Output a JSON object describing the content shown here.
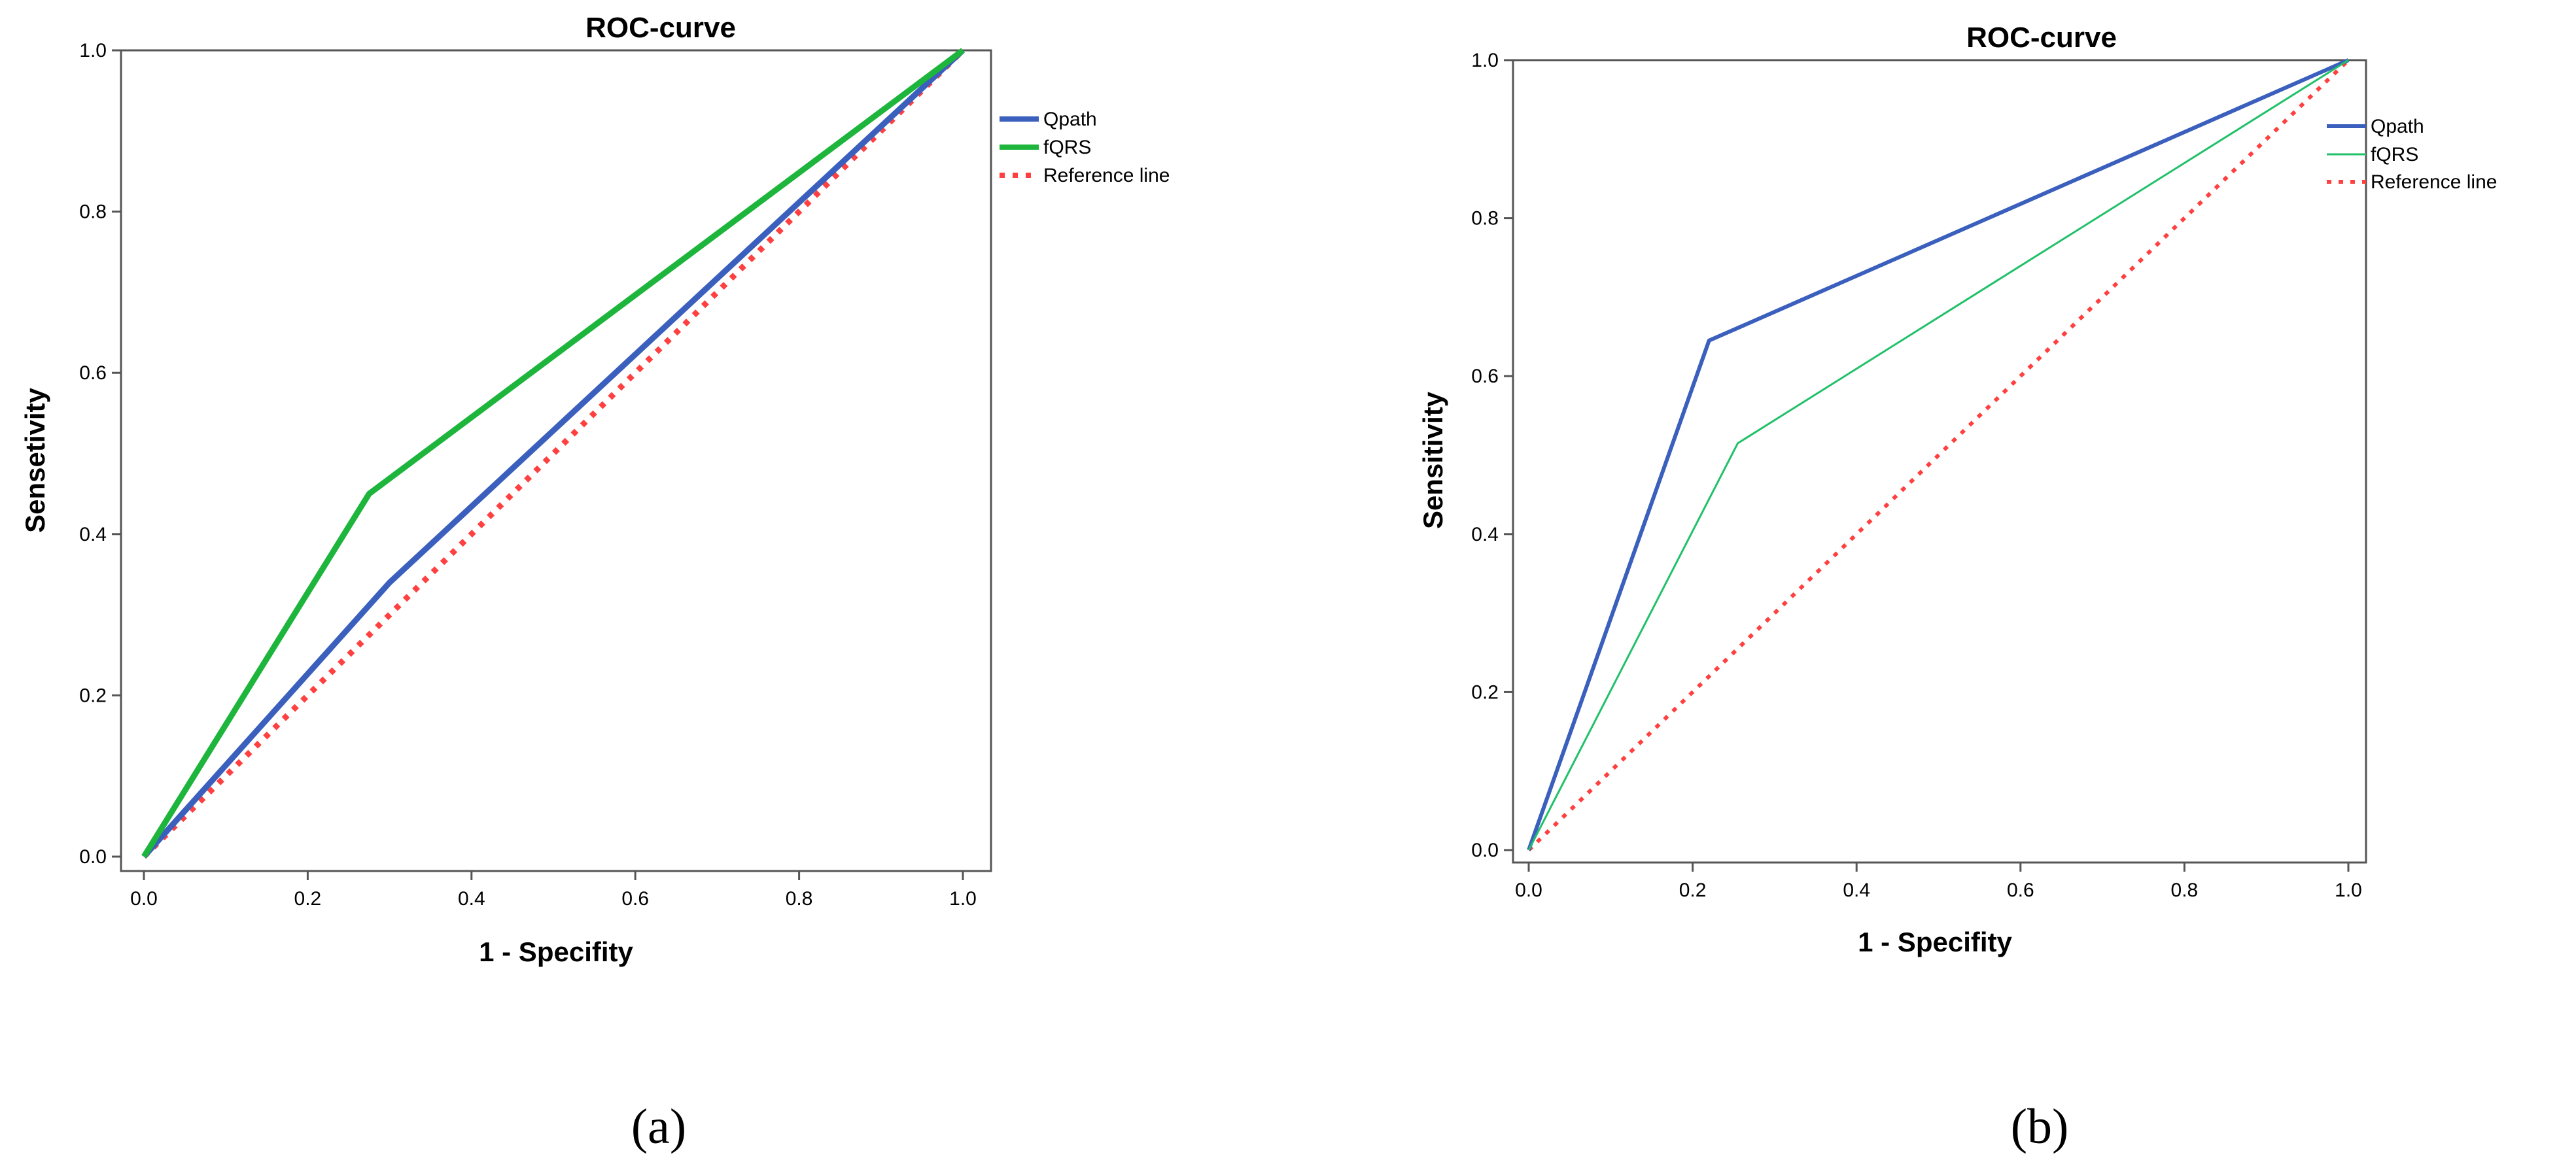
{
  "chart_data": [
    {
      "type": "line",
      "panel_label": "(a)",
      "title": "ROC-curve",
      "xlabel": "1 - Specifity",
      "ylabel": "Sensetivity",
      "xlim": [
        0,
        1
      ],
      "ylim": [
        0,
        1
      ],
      "xticks": [
        "0.0",
        "0.2",
        "0.4",
        "0.6",
        "0.8",
        "1.0"
      ],
      "yticks": [
        "0.0",
        "0.2",
        "0.4",
        "0.6",
        "0.8",
        "1.0"
      ],
      "grid": false,
      "legend_position": "right",
      "series": [
        {
          "name": "Qpath",
          "color": "#3a5fbd",
          "dashed": false,
          "x": [
            0,
            0.3,
            1.0
          ],
          "y": [
            0,
            0.34,
            1.0
          ]
        },
        {
          "name": "fQRS",
          "color": "#1db53c",
          "dashed": false,
          "x": [
            0,
            0.275,
            1.0
          ],
          "y": [
            0,
            0.45,
            1.0
          ]
        },
        {
          "name": "Reference line",
          "color": "#ff4040",
          "dashed": true,
          "x": [
            0,
            1.0
          ],
          "y": [
            0,
            1.0
          ]
        }
      ]
    },
    {
      "type": "line",
      "panel_label": "(b)",
      "title": "ROC-curve",
      "xlabel": "1 - Specifity",
      "ylabel": "Sensitivity",
      "xlim": [
        0,
        1
      ],
      "ylim": [
        0,
        1
      ],
      "xticks": [
        "0.0",
        "0.2",
        "0.4",
        "0.6",
        "0.8",
        "1.0"
      ],
      "yticks": [
        "0.0",
        "0.2",
        "0.4",
        "0.6",
        "0.8",
        "1.0"
      ],
      "grid": false,
      "legend_position": "right",
      "series": [
        {
          "name": "Qpath",
          "color": "#3a5fbd",
          "dashed": false,
          "x": [
            0,
            0.22,
            1.0
          ],
          "y": [
            0,
            0.645,
            1.0
          ]
        },
        {
          "name": "fQRS",
          "color": "#22c06a",
          "dashed": false,
          "x": [
            0,
            0.255,
            1.0
          ],
          "y": [
            0,
            0.515,
            1.0
          ]
        },
        {
          "name": "Reference line",
          "color": "#ff4040",
          "dashed": true,
          "x": [
            0,
            1.0
          ],
          "y": [
            0,
            1.0
          ]
        }
      ]
    }
  ]
}
